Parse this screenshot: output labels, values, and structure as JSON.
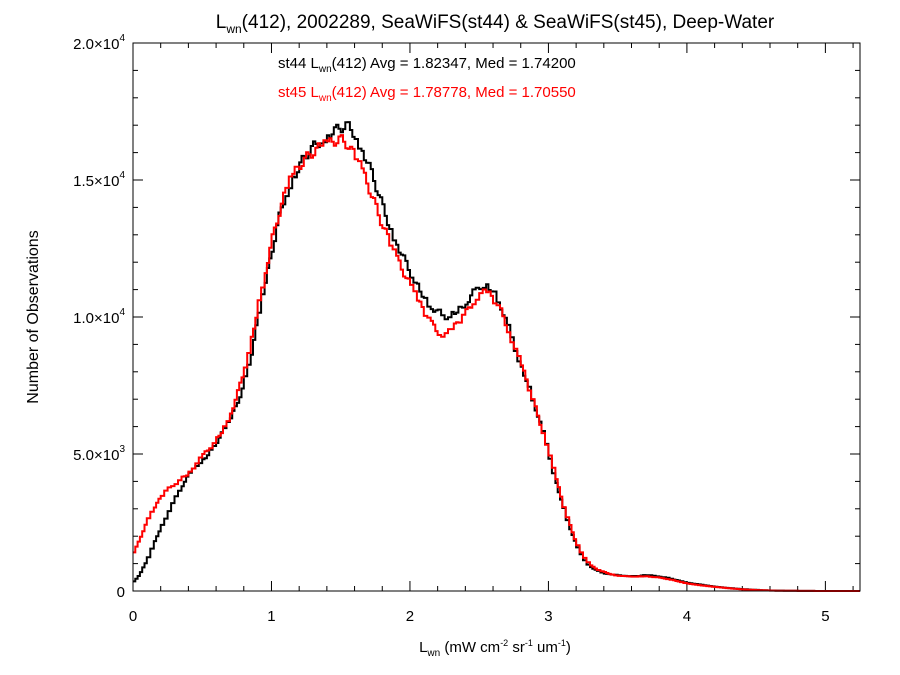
{
  "chart_data": {
    "type": "line",
    "title": {
      "main": "L",
      "sub": "wn",
      "rest": "(412), 2002289, SeaWiFS(st44) & SeaWiFS(st45), Deep-Water"
    },
    "xlabel": {
      "main": "L",
      "sub": "wn",
      "p1": " (mW cm",
      "sup1": "-2",
      "p2": " sr",
      "sup2": "-1",
      "p3": " um",
      "sup3": "-1",
      "p4": ")"
    },
    "ylabel": "Number of Observations",
    "xlim": [
      0,
      5.25
    ],
    "ylim": [
      0,
      20000
    ],
    "x_ticks": [
      {
        "value": 0,
        "label": "0"
      },
      {
        "value": 1,
        "label": "1"
      },
      {
        "value": 2,
        "label": "2"
      },
      {
        "value": 3,
        "label": "3"
      },
      {
        "value": 4,
        "label": "4"
      },
      {
        "value": 5,
        "label": "5"
      }
    ],
    "y_ticks": [
      {
        "value": 0,
        "mantissa": "0",
        "exp": ""
      },
      {
        "value": 5000,
        "mantissa": "5.0×10",
        "exp": "3"
      },
      {
        "value": 10000,
        "mantissa": "1.0×10",
        "exp": "4"
      },
      {
        "value": 15000,
        "mantissa": "1.5×10",
        "exp": "4"
      },
      {
        "value": 20000,
        "mantissa": "2.0×10",
        "exp": "4"
      }
    ],
    "annotations": [
      {
        "parts": [
          "st44 L",
          "wn",
          "(412) Avg = 1.82347, Med = 1.74200"
        ],
        "color": "#000000"
      },
      {
        "parts": [
          "st45 L",
          "wn",
          "(412) Avg = 1.78778, Med = 1.70550"
        ],
        "color": "#ff0000"
      }
    ],
    "series": [
      {
        "color": "#000000",
        "x": [
          0.0,
          0.05,
          0.1,
          0.15,
          0.2,
          0.25,
          0.3,
          0.35,
          0.4,
          0.45,
          0.5,
          0.55,
          0.6,
          0.65,
          0.7,
          0.75,
          0.8,
          0.85,
          0.9,
          0.95,
          1.0,
          1.05,
          1.1,
          1.15,
          1.2,
          1.25,
          1.3,
          1.35,
          1.4,
          1.45,
          1.5,
          1.55,
          1.6,
          1.65,
          1.7,
          1.75,
          1.8,
          1.85,
          1.9,
          1.95,
          2.0,
          2.05,
          2.1,
          2.15,
          2.2,
          2.25,
          2.3,
          2.35,
          2.4,
          2.45,
          2.5,
          2.55,
          2.6,
          2.65,
          2.7,
          2.75,
          2.8,
          2.85,
          2.9,
          2.95,
          3.0,
          3.05,
          3.1,
          3.15,
          3.2,
          3.25,
          3.3,
          3.35,
          3.4,
          3.45,
          3.5,
          3.55,
          3.6,
          3.65,
          3.7,
          3.75,
          3.8,
          3.85,
          3.9,
          3.95,
          4.0,
          4.1,
          4.2,
          4.3,
          4.4,
          4.5,
          4.6,
          4.8,
          5.0,
          5.25
        ],
        "values": [
          300,
          600,
          1100,
          1700,
          2300,
          2800,
          3300,
          3800,
          4200,
          4500,
          4800,
          5000,
          5400,
          5800,
          6200,
          6800,
          7500,
          8500,
          9800,
          11000,
          12300,
          13500,
          14400,
          15000,
          15500,
          15900,
          16200,
          16400,
          16600,
          16800,
          16900,
          17000,
          16700,
          16200,
          15600,
          14900,
          14100,
          13400,
          12800,
          12200,
          11700,
          11200,
          10800,
          10400,
          10200,
          10000,
          10100,
          10300,
          10500,
          10800,
          11100,
          11200,
          11000,
          10500,
          9800,
          9000,
          8300,
          7600,
          6800,
          6000,
          5100,
          4100,
          3200,
          2400,
          1700,
          1200,
          900,
          750,
          650,
          600,
          580,
          560,
          540,
          550,
          580,
          560,
          530,
          490,
          430,
          370,
          300,
          230,
          160,
          110,
          70,
          40,
          20,
          5,
          0,
          0
        ]
      },
      {
        "color": "#ff0000",
        "x": [
          0.0,
          0.05,
          0.1,
          0.15,
          0.2,
          0.25,
          0.3,
          0.35,
          0.4,
          0.45,
          0.5,
          0.55,
          0.6,
          0.65,
          0.7,
          0.75,
          0.8,
          0.85,
          0.9,
          0.95,
          1.0,
          1.05,
          1.1,
          1.15,
          1.2,
          1.25,
          1.3,
          1.35,
          1.4,
          1.45,
          1.5,
          1.55,
          1.6,
          1.65,
          1.7,
          1.75,
          1.8,
          1.85,
          1.9,
          1.95,
          2.0,
          2.05,
          2.1,
          2.15,
          2.2,
          2.25,
          2.3,
          2.35,
          2.4,
          2.45,
          2.5,
          2.55,
          2.6,
          2.65,
          2.7,
          2.75,
          2.8,
          2.85,
          2.9,
          2.95,
          3.0,
          3.05,
          3.1,
          3.15,
          3.2,
          3.25,
          3.3,
          3.35,
          3.4,
          3.45,
          3.5,
          3.55,
          3.6,
          3.65,
          3.7,
          3.75,
          3.8,
          3.85,
          3.9,
          3.95,
          4.0,
          4.1,
          4.2,
          4.3,
          4.4,
          4.5,
          4.6,
          4.8,
          5.0,
          5.25
        ],
        "values": [
          1300,
          1900,
          2500,
          3000,
          3400,
          3700,
          3900,
          4100,
          4300,
          4600,
          4900,
          5200,
          5500,
          5900,
          6400,
          7100,
          8000,
          9000,
          10300,
          11500,
          12700,
          13700,
          14500,
          15100,
          15500,
          15800,
          16000,
          16200,
          16300,
          16400,
          16500,
          16300,
          15900,
          15400,
          14800,
          14100,
          13400,
          12800,
          12200,
          11700,
          11200,
          10700,
          10200,
          9800,
          9500,
          9300,
          9500,
          9800,
          10100,
          10500,
          10800,
          10900,
          10700,
          10300,
          9700,
          9000,
          8300,
          7600,
          6800,
          6000,
          5200,
          4200,
          3300,
          2500,
          1800,
          1300,
          950,
          800,
          700,
          620,
          560,
          540,
          530,
          530,
          540,
          520,
          490,
          450,
          400,
          340,
          280,
          210,
          150,
          100,
          60,
          35,
          15,
          5,
          0,
          0
        ]
      }
    ]
  }
}
